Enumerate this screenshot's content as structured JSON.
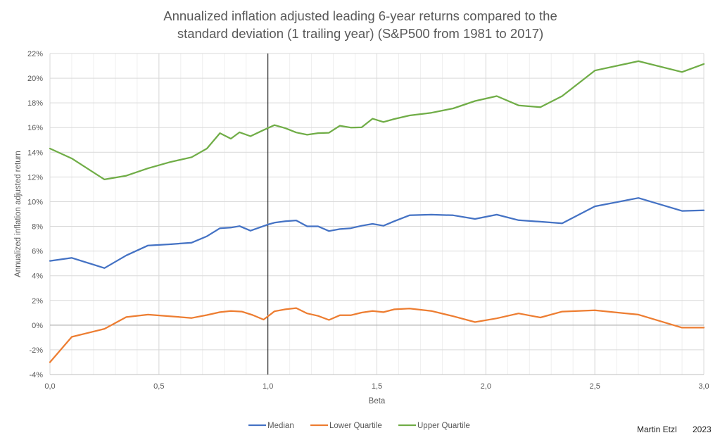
{
  "chart_data": {
    "type": "line",
    "title_lines": [
      "Annualized inflation adjusted leading 6-year returns compared to the",
      "standard deviation (1 trailing year) (S&P500 from 1981 to 2017)"
    ],
    "xlabel": "Beta",
    "ylabel": "Annualized inflation adjusted return",
    "xlim": [
      0,
      3
    ],
    "ylim": [
      -4,
      22
    ],
    "x_ticks": [
      0,
      0.5,
      1.0,
      1.5,
      2.0,
      2.5,
      3.0
    ],
    "x_tick_labels": [
      "0,0",
      "0,5",
      "1,0",
      "1,5",
      "2,0",
      "2,5",
      "3,0"
    ],
    "y_ticks": [
      -4,
      -2,
      0,
      2,
      4,
      6,
      8,
      10,
      12,
      14,
      16,
      18,
      20,
      22
    ],
    "y_tick_labels": [
      "-4%",
      "-2%",
      "0%",
      "2%",
      "4%",
      "6%",
      "8%",
      "10%",
      "12%",
      "14%",
      "16%",
      "18%",
      "20%",
      "22%"
    ],
    "grid": true,
    "minor_x_grid_step": 0.1,
    "vertical_marker_x": 1.0,
    "legend_position": "bottom",
    "series": [
      {
        "name": "Median",
        "color": "#4472C4",
        "points": [
          [
            0.0,
            5.2
          ],
          [
            0.1,
            5.45
          ],
          [
            0.25,
            4.62
          ],
          [
            0.35,
            5.65
          ],
          [
            0.45,
            6.45
          ],
          [
            0.55,
            6.55
          ],
          [
            0.65,
            6.68
          ],
          [
            0.72,
            7.2
          ],
          [
            0.78,
            7.85
          ],
          [
            0.83,
            7.9
          ],
          [
            0.87,
            8.02
          ],
          [
            0.92,
            7.65
          ],
          [
            1.0,
            8.15
          ],
          [
            1.03,
            8.3
          ],
          [
            1.08,
            8.42
          ],
          [
            1.13,
            8.48
          ],
          [
            1.18,
            8.0
          ],
          [
            1.23,
            8.0
          ],
          [
            1.28,
            7.62
          ],
          [
            1.33,
            7.78
          ],
          [
            1.38,
            7.85
          ],
          [
            1.43,
            8.05
          ],
          [
            1.48,
            8.2
          ],
          [
            1.53,
            8.05
          ],
          [
            1.58,
            8.42
          ],
          [
            1.65,
            8.9
          ],
          [
            1.75,
            8.95
          ],
          [
            1.85,
            8.9
          ],
          [
            1.95,
            8.6
          ],
          [
            2.05,
            8.95
          ],
          [
            2.15,
            8.5
          ],
          [
            2.25,
            8.38
          ],
          [
            2.35,
            8.25
          ],
          [
            2.5,
            9.62
          ],
          [
            2.7,
            10.3
          ],
          [
            2.9,
            9.25
          ],
          [
            3.0,
            9.3
          ]
        ]
      },
      {
        "name": "Lower Quartile",
        "color": "#ED7D31",
        "points": [
          [
            0.0,
            -3.0
          ],
          [
            0.1,
            -0.95
          ],
          [
            0.25,
            -0.3
          ],
          [
            0.35,
            0.65
          ],
          [
            0.45,
            0.85
          ],
          [
            0.55,
            0.72
          ],
          [
            0.65,
            0.58
          ],
          [
            0.72,
            0.82
          ],
          [
            0.78,
            1.05
          ],
          [
            0.83,
            1.15
          ],
          [
            0.88,
            1.1
          ],
          [
            0.93,
            0.82
          ],
          [
            0.98,
            0.45
          ],
          [
            1.03,
            1.12
          ],
          [
            1.08,
            1.28
          ],
          [
            1.13,
            1.38
          ],
          [
            1.18,
            0.95
          ],
          [
            1.23,
            0.75
          ],
          [
            1.28,
            0.42
          ],
          [
            1.33,
            0.8
          ],
          [
            1.38,
            0.8
          ],
          [
            1.43,
            1.02
          ],
          [
            1.48,
            1.15
          ],
          [
            1.53,
            1.05
          ],
          [
            1.58,
            1.28
          ],
          [
            1.65,
            1.35
          ],
          [
            1.75,
            1.15
          ],
          [
            1.85,
            0.72
          ],
          [
            1.95,
            0.25
          ],
          [
            2.05,
            0.55
          ],
          [
            2.15,
            0.95
          ],
          [
            2.25,
            0.62
          ],
          [
            2.35,
            1.1
          ],
          [
            2.5,
            1.2
          ],
          [
            2.7,
            0.85
          ],
          [
            2.9,
            -0.2
          ],
          [
            3.0,
            -0.2
          ]
        ]
      },
      {
        "name": "Upper Quartile",
        "color": "#70AD47",
        "points": [
          [
            0.0,
            14.3
          ],
          [
            0.1,
            13.5
          ],
          [
            0.25,
            11.8
          ],
          [
            0.35,
            12.1
          ],
          [
            0.45,
            12.7
          ],
          [
            0.55,
            13.2
          ],
          [
            0.65,
            13.6
          ],
          [
            0.72,
            14.3
          ],
          [
            0.78,
            15.55
          ],
          [
            0.83,
            15.1
          ],
          [
            0.87,
            15.62
          ],
          [
            0.92,
            15.3
          ],
          [
            0.98,
            15.8
          ],
          [
            1.03,
            16.2
          ],
          [
            1.08,
            15.95
          ],
          [
            1.13,
            15.6
          ],
          [
            1.18,
            15.42
          ],
          [
            1.23,
            15.55
          ],
          [
            1.28,
            15.58
          ],
          [
            1.33,
            16.15
          ],
          [
            1.38,
            16.0
          ],
          [
            1.43,
            16.02
          ],
          [
            1.48,
            16.72
          ],
          [
            1.53,
            16.45
          ],
          [
            1.58,
            16.7
          ],
          [
            1.65,
            16.98
          ],
          [
            1.75,
            17.2
          ],
          [
            1.85,
            17.55
          ],
          [
            1.95,
            18.15
          ],
          [
            2.05,
            18.55
          ],
          [
            2.15,
            17.8
          ],
          [
            2.25,
            17.65
          ],
          [
            2.35,
            18.55
          ],
          [
            2.5,
            20.62
          ],
          [
            2.7,
            21.38
          ],
          [
            2.9,
            20.5
          ],
          [
            3.0,
            21.15
          ]
        ]
      }
    ]
  },
  "credits": {
    "author": "Martin Etzl",
    "year": "2023"
  }
}
